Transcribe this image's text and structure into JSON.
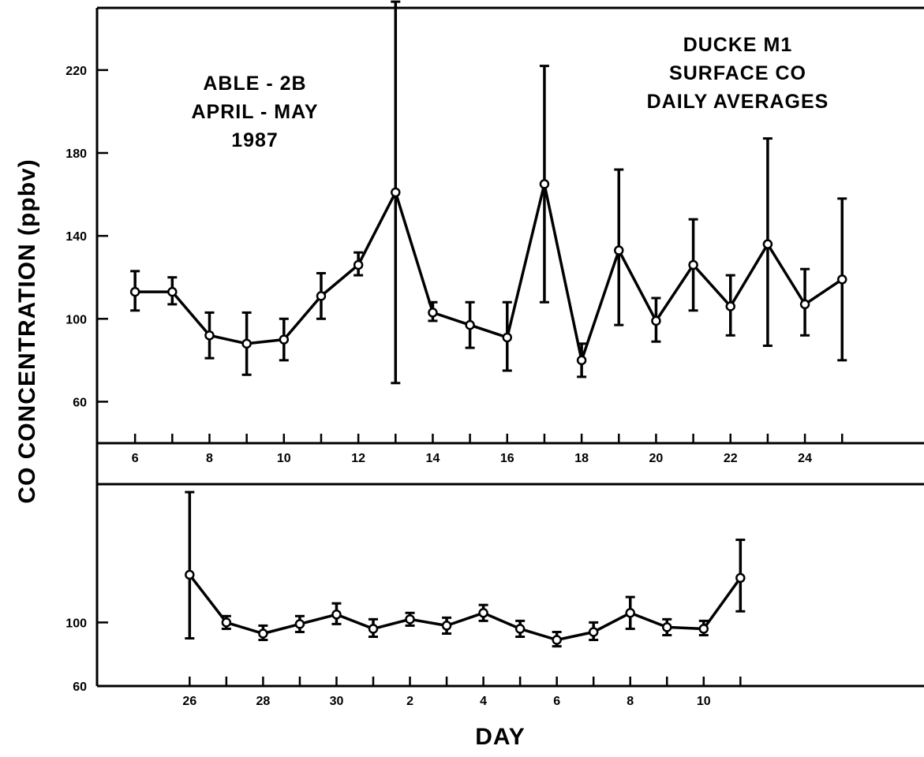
{
  "chart_data": [
    {
      "type": "line",
      "panel": "top",
      "ylabel": "CO CONCENTRATION (ppbv)",
      "xlabel": "DAY",
      "ylim": [
        40,
        250
      ],
      "xlim": [
        5,
        27.2
      ],
      "yticks": [
        60,
        100,
        140,
        180,
        220
      ],
      "xtick_labels": [
        {
          "x": 6,
          "label": "6"
        },
        {
          "x": 8,
          "label": "8"
        },
        {
          "x": 10,
          "label": "10"
        },
        {
          "x": 12,
          "label": "12"
        },
        {
          "x": 14,
          "label": "14"
        },
        {
          "x": 16,
          "label": "16"
        },
        {
          "x": 18,
          "label": "18"
        },
        {
          "x": 20,
          "label": "20"
        },
        {
          "x": 22,
          "label": "22"
        },
        {
          "x": 24,
          "label": "24"
        }
      ],
      "annotations": [
        {
          "id": "campaign",
          "lines": [
            "ABLE - 2B",
            "APRIL - MAY",
            "1987"
          ]
        },
        {
          "id": "site",
          "lines": [
            "DUCKE  M1",
            "SURFACE CO",
            "DAILY  AVERAGES"
          ]
        }
      ],
      "points": [
        {
          "x": 6,
          "y": 113,
          "low": 104,
          "high": 123
        },
        {
          "x": 7,
          "y": 113,
          "low": 107,
          "high": 120
        },
        {
          "x": 8,
          "y": 92,
          "low": 81,
          "high": 103
        },
        {
          "x": 9,
          "y": 88,
          "low": 73,
          "high": 103
        },
        {
          "x": 10,
          "y": 90,
          "low": 80,
          "high": 100
        },
        {
          "x": 11,
          "y": 111,
          "low": 100,
          "high": 122
        },
        {
          "x": 12,
          "y": 126,
          "low": 121,
          "high": 132
        },
        {
          "x": 13,
          "y": 161,
          "low": 69,
          "high": 253
        },
        {
          "x": 14,
          "y": 103,
          "low": 99,
          "high": 108
        },
        {
          "x": 15,
          "y": 97,
          "low": 86,
          "high": 108
        },
        {
          "x": 16,
          "y": 91,
          "low": 75,
          "high": 108
        },
        {
          "x": 17,
          "y": 165,
          "low": 108,
          "high": 222
        },
        {
          "x": 18,
          "y": 80,
          "low": 72,
          "high": 88
        },
        {
          "x": 19,
          "y": 133,
          "low": 97,
          "high": 172
        },
        {
          "x": 20,
          "y": 99,
          "low": 89,
          "high": 110
        },
        {
          "x": 21,
          "y": 126,
          "low": 104,
          "high": 148
        },
        {
          "x": 22,
          "y": 106,
          "low": 92,
          "high": 121
        },
        {
          "x": 23,
          "y": 136,
          "low": 87,
          "high": 187
        },
        {
          "x": 24,
          "y": 107,
          "low": 92,
          "high": 124
        },
        {
          "x": 25,
          "y": 119,
          "low": 80,
          "high": 158
        }
      ]
    },
    {
      "type": "line",
      "panel": "bottom",
      "ylim": [
        60,
        187
      ],
      "yticks": [
        60,
        100
      ],
      "xlim": [
        23.5,
        46
      ],
      "xtick_labels": [
        {
          "x": 26,
          "label": "26"
        },
        {
          "x": 28,
          "label": "28"
        },
        {
          "x": 30,
          "label": "30"
        },
        {
          "x": 32,
          "label": "2"
        },
        {
          "x": 34,
          "label": "4"
        },
        {
          "x": 36,
          "label": "6"
        },
        {
          "x": 38,
          "label": "8"
        },
        {
          "x": 40,
          "label": "10"
        }
      ],
      "points": [
        {
          "x": 26,
          "y": 130,
          "low": 90,
          "high": 182
        },
        {
          "x": 27,
          "y": 100,
          "low": 96,
          "high": 104
        },
        {
          "x": 28,
          "y": 93,
          "low": 89,
          "high": 98
        },
        {
          "x": 29,
          "y": 99,
          "low": 94,
          "high": 104
        },
        {
          "x": 30,
          "y": 105,
          "low": 99,
          "high": 112
        },
        {
          "x": 31,
          "y": 96,
          "low": 91,
          "high": 102
        },
        {
          "x": 32,
          "y": 102,
          "low": 98,
          "high": 106
        },
        {
          "x": 33,
          "y": 98,
          "low": 93,
          "high": 103
        },
        {
          "x": 34,
          "y": 106,
          "low": 101,
          "high": 111
        },
        {
          "x": 35,
          "y": 96,
          "low": 91,
          "high": 101
        },
        {
          "x": 36,
          "y": 89,
          "low": 85,
          "high": 94
        },
        {
          "x": 37,
          "y": 94,
          "low": 89,
          "high": 100
        },
        {
          "x": 38,
          "y": 106,
          "low": 96,
          "high": 116
        },
        {
          "x": 39,
          "y": 97,
          "low": 92,
          "high": 102
        },
        {
          "x": 40,
          "y": 96,
          "low": 92,
          "high": 101
        },
        {
          "x": 41,
          "y": 128,
          "low": 107,
          "high": 152
        }
      ]
    }
  ]
}
